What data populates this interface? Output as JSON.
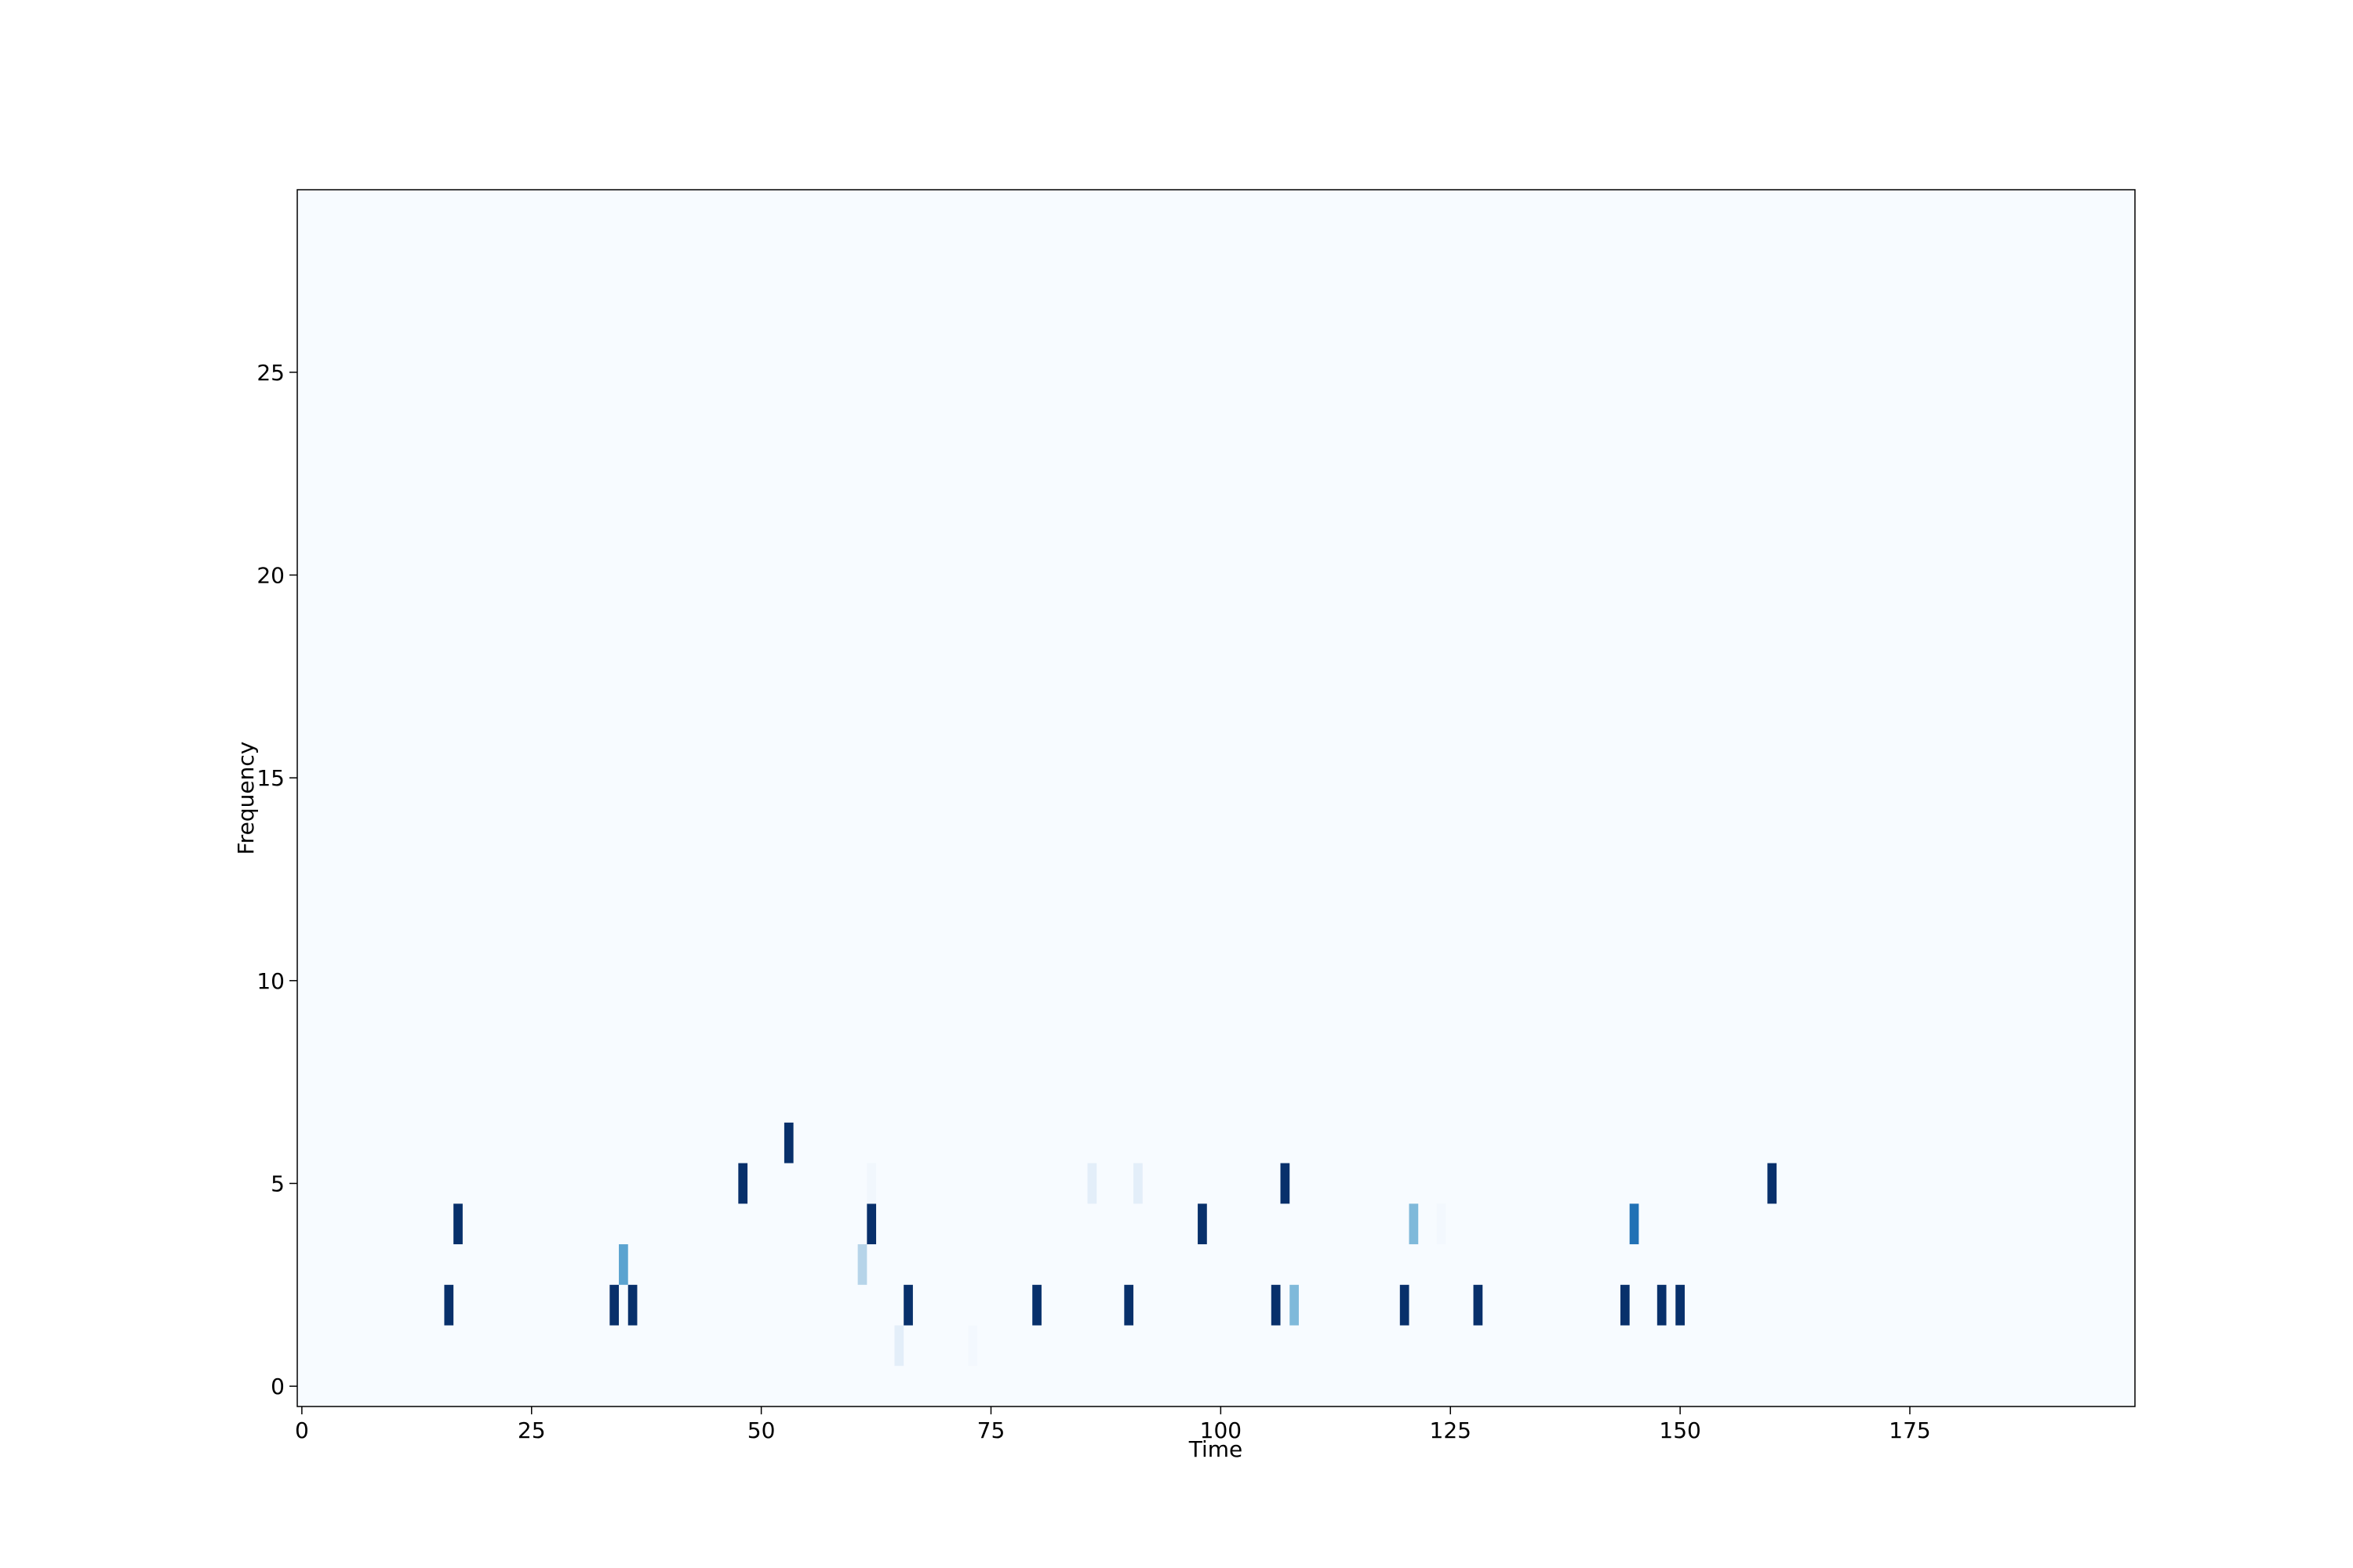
{
  "chart_data": {
    "type": "heatmap",
    "title": "",
    "xlabel": "Time",
    "ylabel": "Frequency",
    "xlim": [
      -0.5,
      199.5
    ],
    "ylim": [
      -0.5,
      29.5
    ],
    "xticks": [
      0,
      25,
      50,
      75,
      100,
      125,
      150,
      175
    ],
    "yticks": [
      0,
      5,
      10,
      15,
      20,
      25
    ],
    "colormap": "Blues",
    "colors": {
      "background": "#f7fbff",
      "axis": "#000000"
    },
    "cells": [
      {
        "x": 16,
        "y": 2,
        "value": 1.0
      },
      {
        "x": 17,
        "y": 4,
        "value": 1.0
      },
      {
        "x": 34,
        "y": 2,
        "value": 1.0
      },
      {
        "x": 35,
        "y": 3,
        "value": 0.55
      },
      {
        "x": 36,
        "y": 2,
        "value": 1.0
      },
      {
        "x": 48,
        "y": 5,
        "value": 1.0
      },
      {
        "x": 53,
        "y": 6,
        "value": 1.0
      },
      {
        "x": 61,
        "y": 3,
        "value": 0.3
      },
      {
        "x": 62,
        "y": 4,
        "value": 1.0
      },
      {
        "x": 62,
        "y": 5,
        "value": 0.03
      },
      {
        "x": 65,
        "y": 1,
        "value": 0.1
      },
      {
        "x": 66,
        "y": 2,
        "value": 1.0
      },
      {
        "x": 73,
        "y": 1,
        "value": 0.02
      },
      {
        "x": 80,
        "y": 2,
        "value": 1.0
      },
      {
        "x": 86,
        "y": 5,
        "value": 0.1
      },
      {
        "x": 90,
        "y": 2,
        "value": 1.0
      },
      {
        "x": 91,
        "y": 5,
        "value": 0.1
      },
      {
        "x": 98,
        "y": 4,
        "value": 1.0
      },
      {
        "x": 106,
        "y": 2,
        "value": 1.0
      },
      {
        "x": 107,
        "y": 5,
        "value": 1.0
      },
      {
        "x": 108,
        "y": 2,
        "value": 0.45
      },
      {
        "x": 120,
        "y": 2,
        "value": 1.0
      },
      {
        "x": 121,
        "y": 4,
        "value": 0.45
      },
      {
        "x": 124,
        "y": 4,
        "value": 0.02
      },
      {
        "x": 128,
        "y": 2,
        "value": 1.0
      },
      {
        "x": 144,
        "y": 2,
        "value": 1.0
      },
      {
        "x": 145,
        "y": 4,
        "value": 0.75
      },
      {
        "x": 148,
        "y": 2,
        "value": 1.0
      },
      {
        "x": 150,
        "y": 2,
        "value": 1.0
      },
      {
        "x": 160,
        "y": 5,
        "value": 1.0
      }
    ]
  }
}
